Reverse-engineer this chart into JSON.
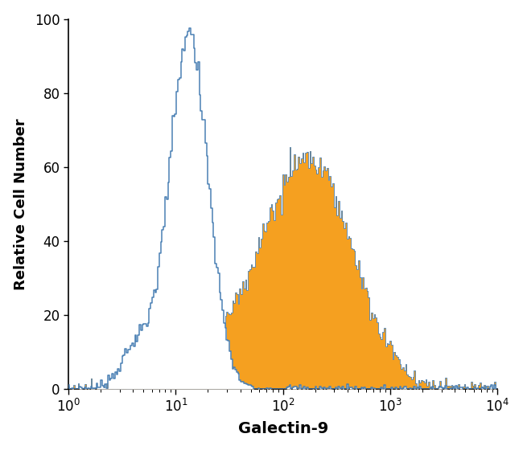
{
  "xlabel": "Galectin-9",
  "ylabel": "Relative Cell Number",
  "xlim_log": [
    0,
    4
  ],
  "ylim": [
    0,
    100
  ],
  "yticks": [
    0,
    20,
    40,
    60,
    80,
    100
  ],
  "blue_color": "#4a80b4",
  "orange_color": "#f5a020",
  "background_color": "#ffffff",
  "blue_log_mean": 1.13,
  "blue_log_std": 0.18,
  "blue_peak_height": 98,
  "orange_log_mean": 2.28,
  "orange_log_std": 0.4,
  "orange_peak_height": 65,
  "n_bins": 300,
  "blue_seed": 42,
  "orange_seed": 99,
  "noise_seed": 7,
  "n_samples": 50000
}
